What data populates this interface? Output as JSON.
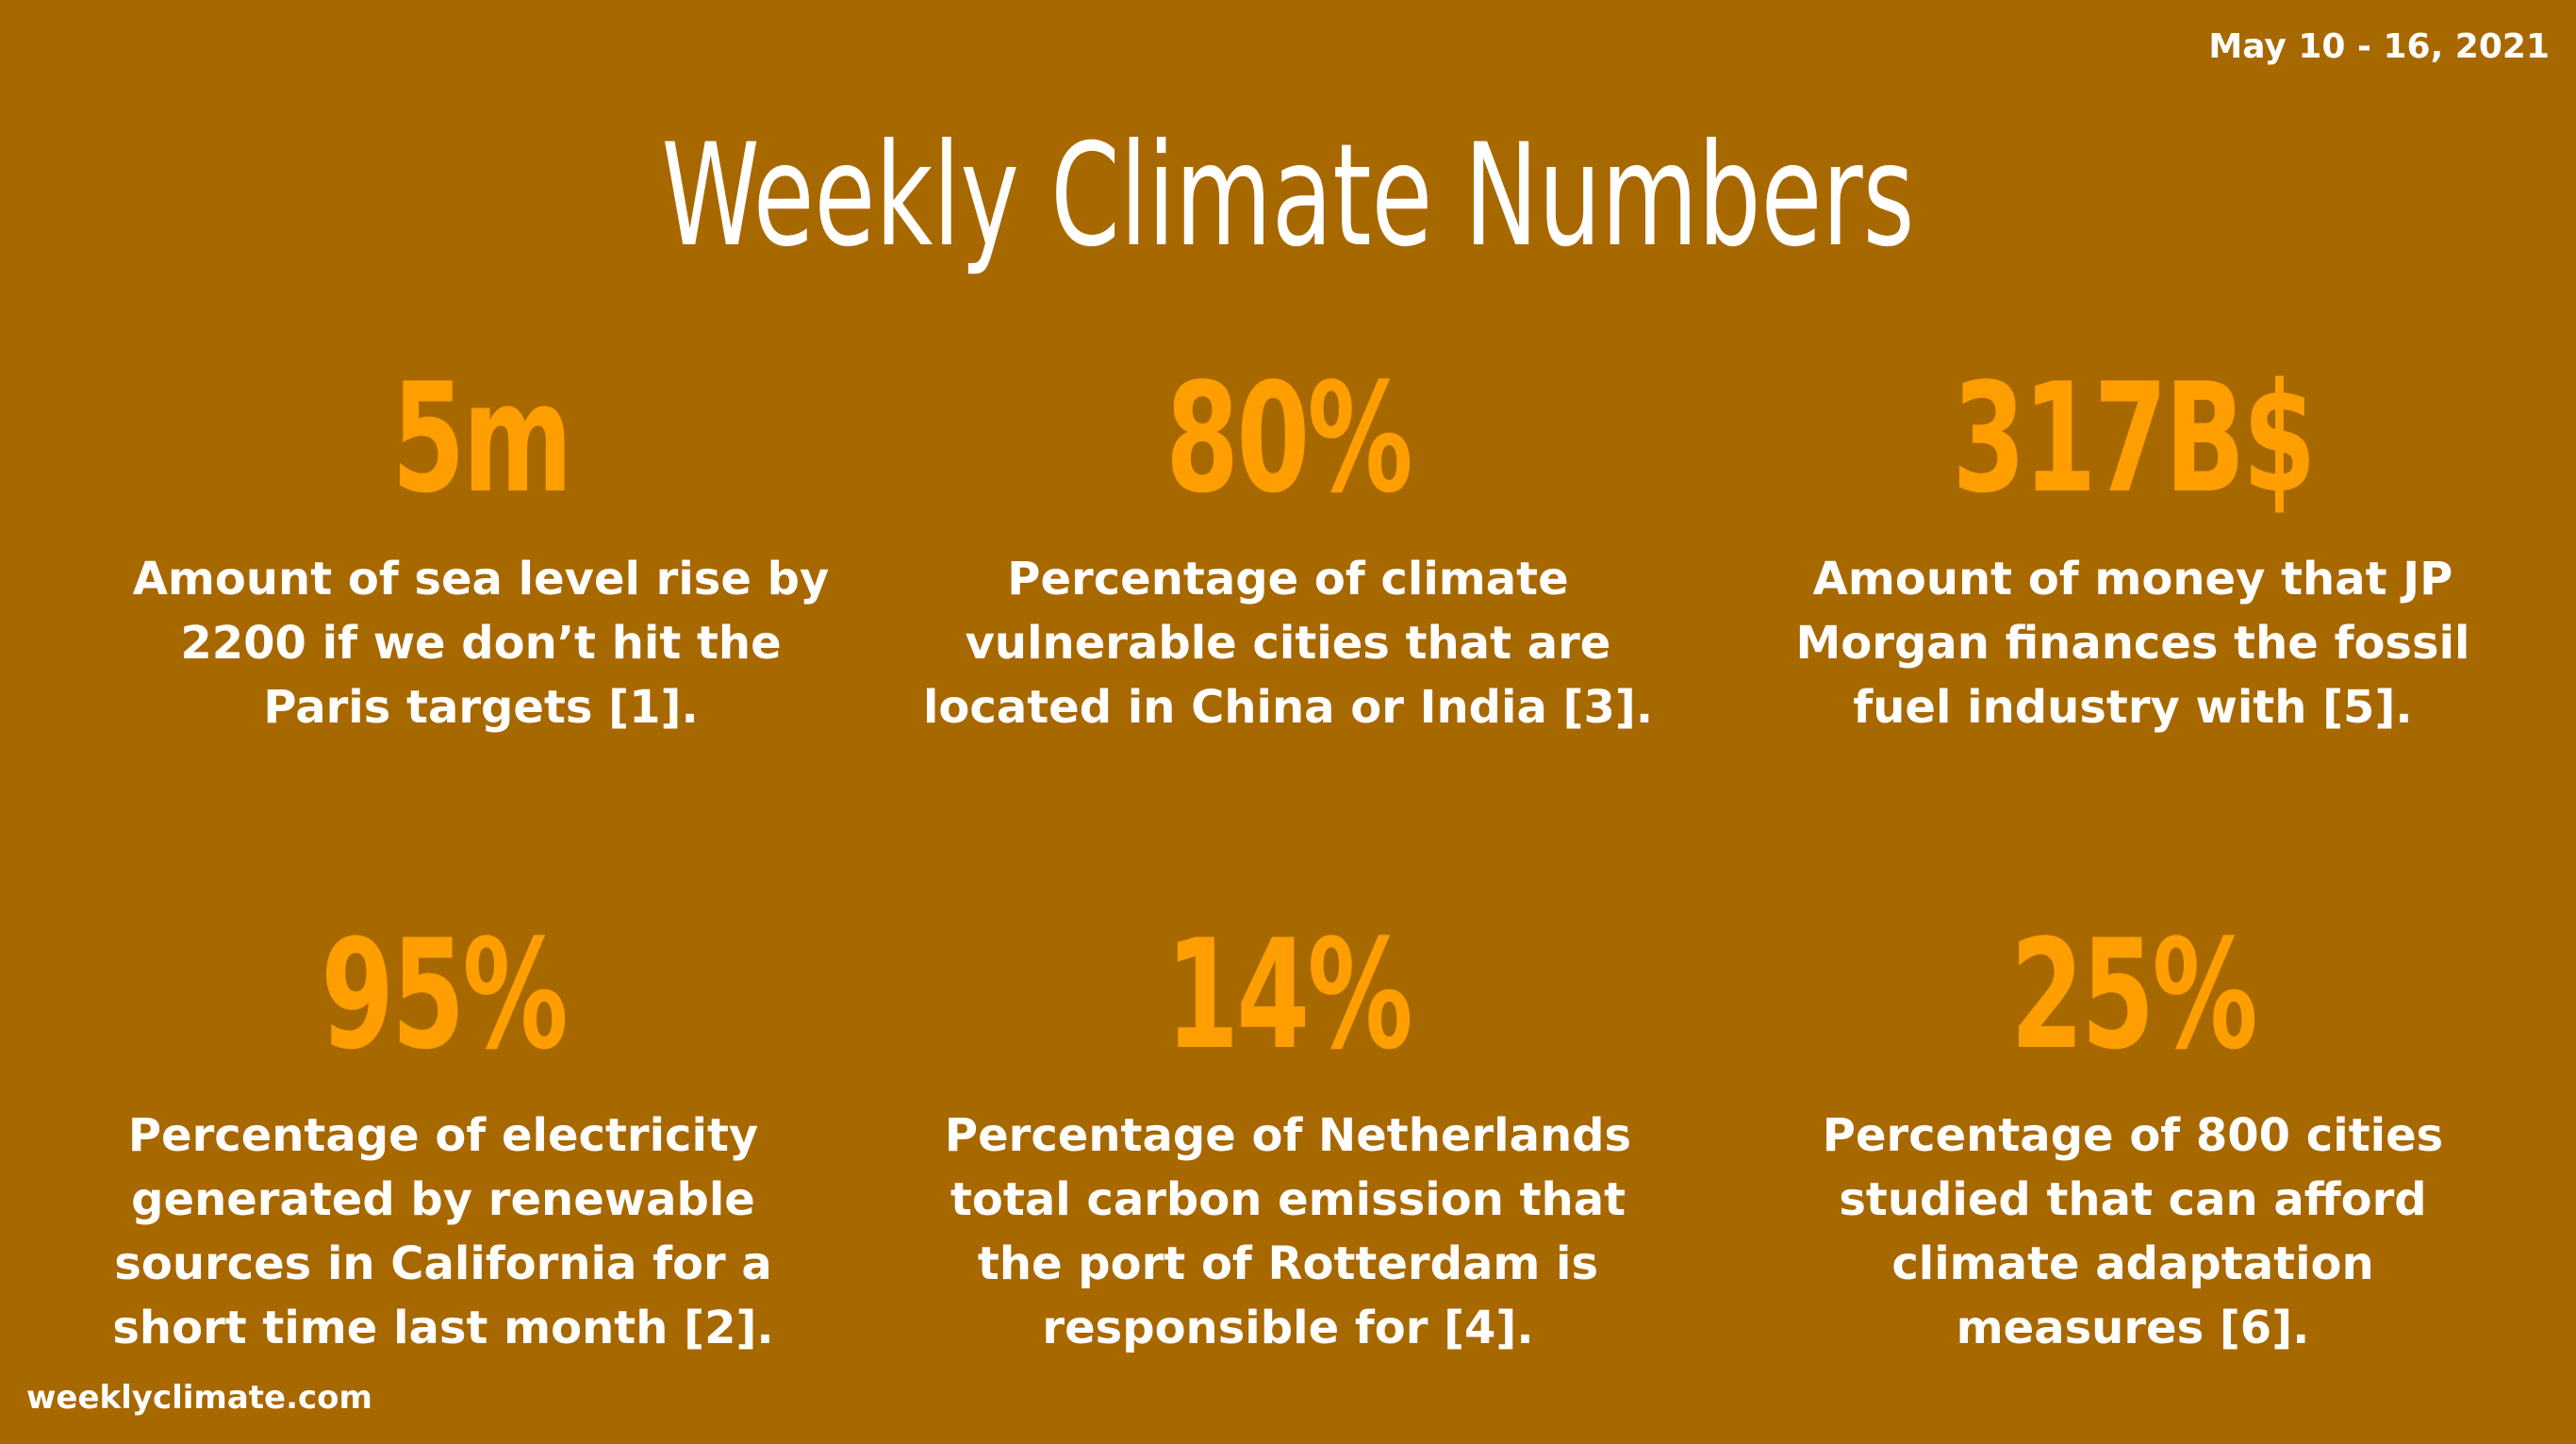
{
  "date_range": "May 10 - 16, 2021",
  "title": "Weekly Climate Numbers",
  "stats": [
    {
      "value": "5m",
      "lines": [
        "Amount of sea level rise by",
        "2200 if we don’t hit the",
        "Paris targets [1]."
      ]
    },
    {
      "value": "80%",
      "lines": [
        "Percentage of climate",
        "vulnerable cities that are",
        "located in China or India [3]."
      ]
    },
    {
      "value": "317B$",
      "lines": [
        "Amount of money that JP",
        "Morgan finances the fossil",
        "fuel industry with [5]."
      ]
    },
    {
      "value": "95%",
      "lines": [
        "Percentage of electricity",
        "generated by renewable",
        "sources in California for a",
        "short time last month [2]."
      ]
    },
    {
      "value": "14%",
      "lines": [
        "Percentage of Netherlands",
        "total carbon emission that",
        "the port of Rotterdam is",
        "responsible for [4]."
      ]
    },
    {
      "value": "25%",
      "lines": [
        "Percentage of 800 cities",
        "studied that can afford",
        "climate adaptation",
        "measures [6]."
      ]
    }
  ],
  "footer": "weeklyclimate.com",
  "colors": {
    "background": "#a86800",
    "accent": "#ff9e00",
    "text": "#ffffff"
  }
}
